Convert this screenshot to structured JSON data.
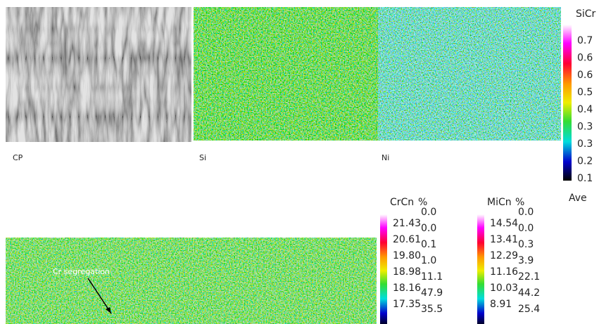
{
  "panels": [
    {
      "label": "CP"
    },
    {
      "label": "Si"
    },
    {
      "label": "Ni"
    }
  ],
  "annotation": "Cr segregation",
  "legend_top": {
    "title": "SiCr",
    "levels": [
      "0.7",
      "0.6",
      "0.6",
      "0.5",
      "0.4",
      "0.3",
      "0.3",
      "0.2",
      "0.1"
    ],
    "footer": "Ave"
  },
  "legend_cr": {
    "title": "CrCn",
    "pct_title": "%",
    "levels": [
      "21.43",
      "20.61",
      "19.80",
      "18.98",
      "18.16",
      "17.35"
    ],
    "pct": [
      "0.0",
      "0.0",
      "0.1",
      "1.0",
      "11.1",
      "47.9",
      "35.5"
    ]
  },
  "legend_mn": {
    "title": "MiCn",
    "pct_title": "%",
    "levels": [
      "14.54",
      "13.41",
      "12.29",
      "11.16",
      "10.03",
      "8.91"
    ],
    "pct": [
      "0.0",
      "0.0",
      "0.3",
      "3.9",
      "22.1",
      "44.2",
      "25.4"
    ]
  }
}
